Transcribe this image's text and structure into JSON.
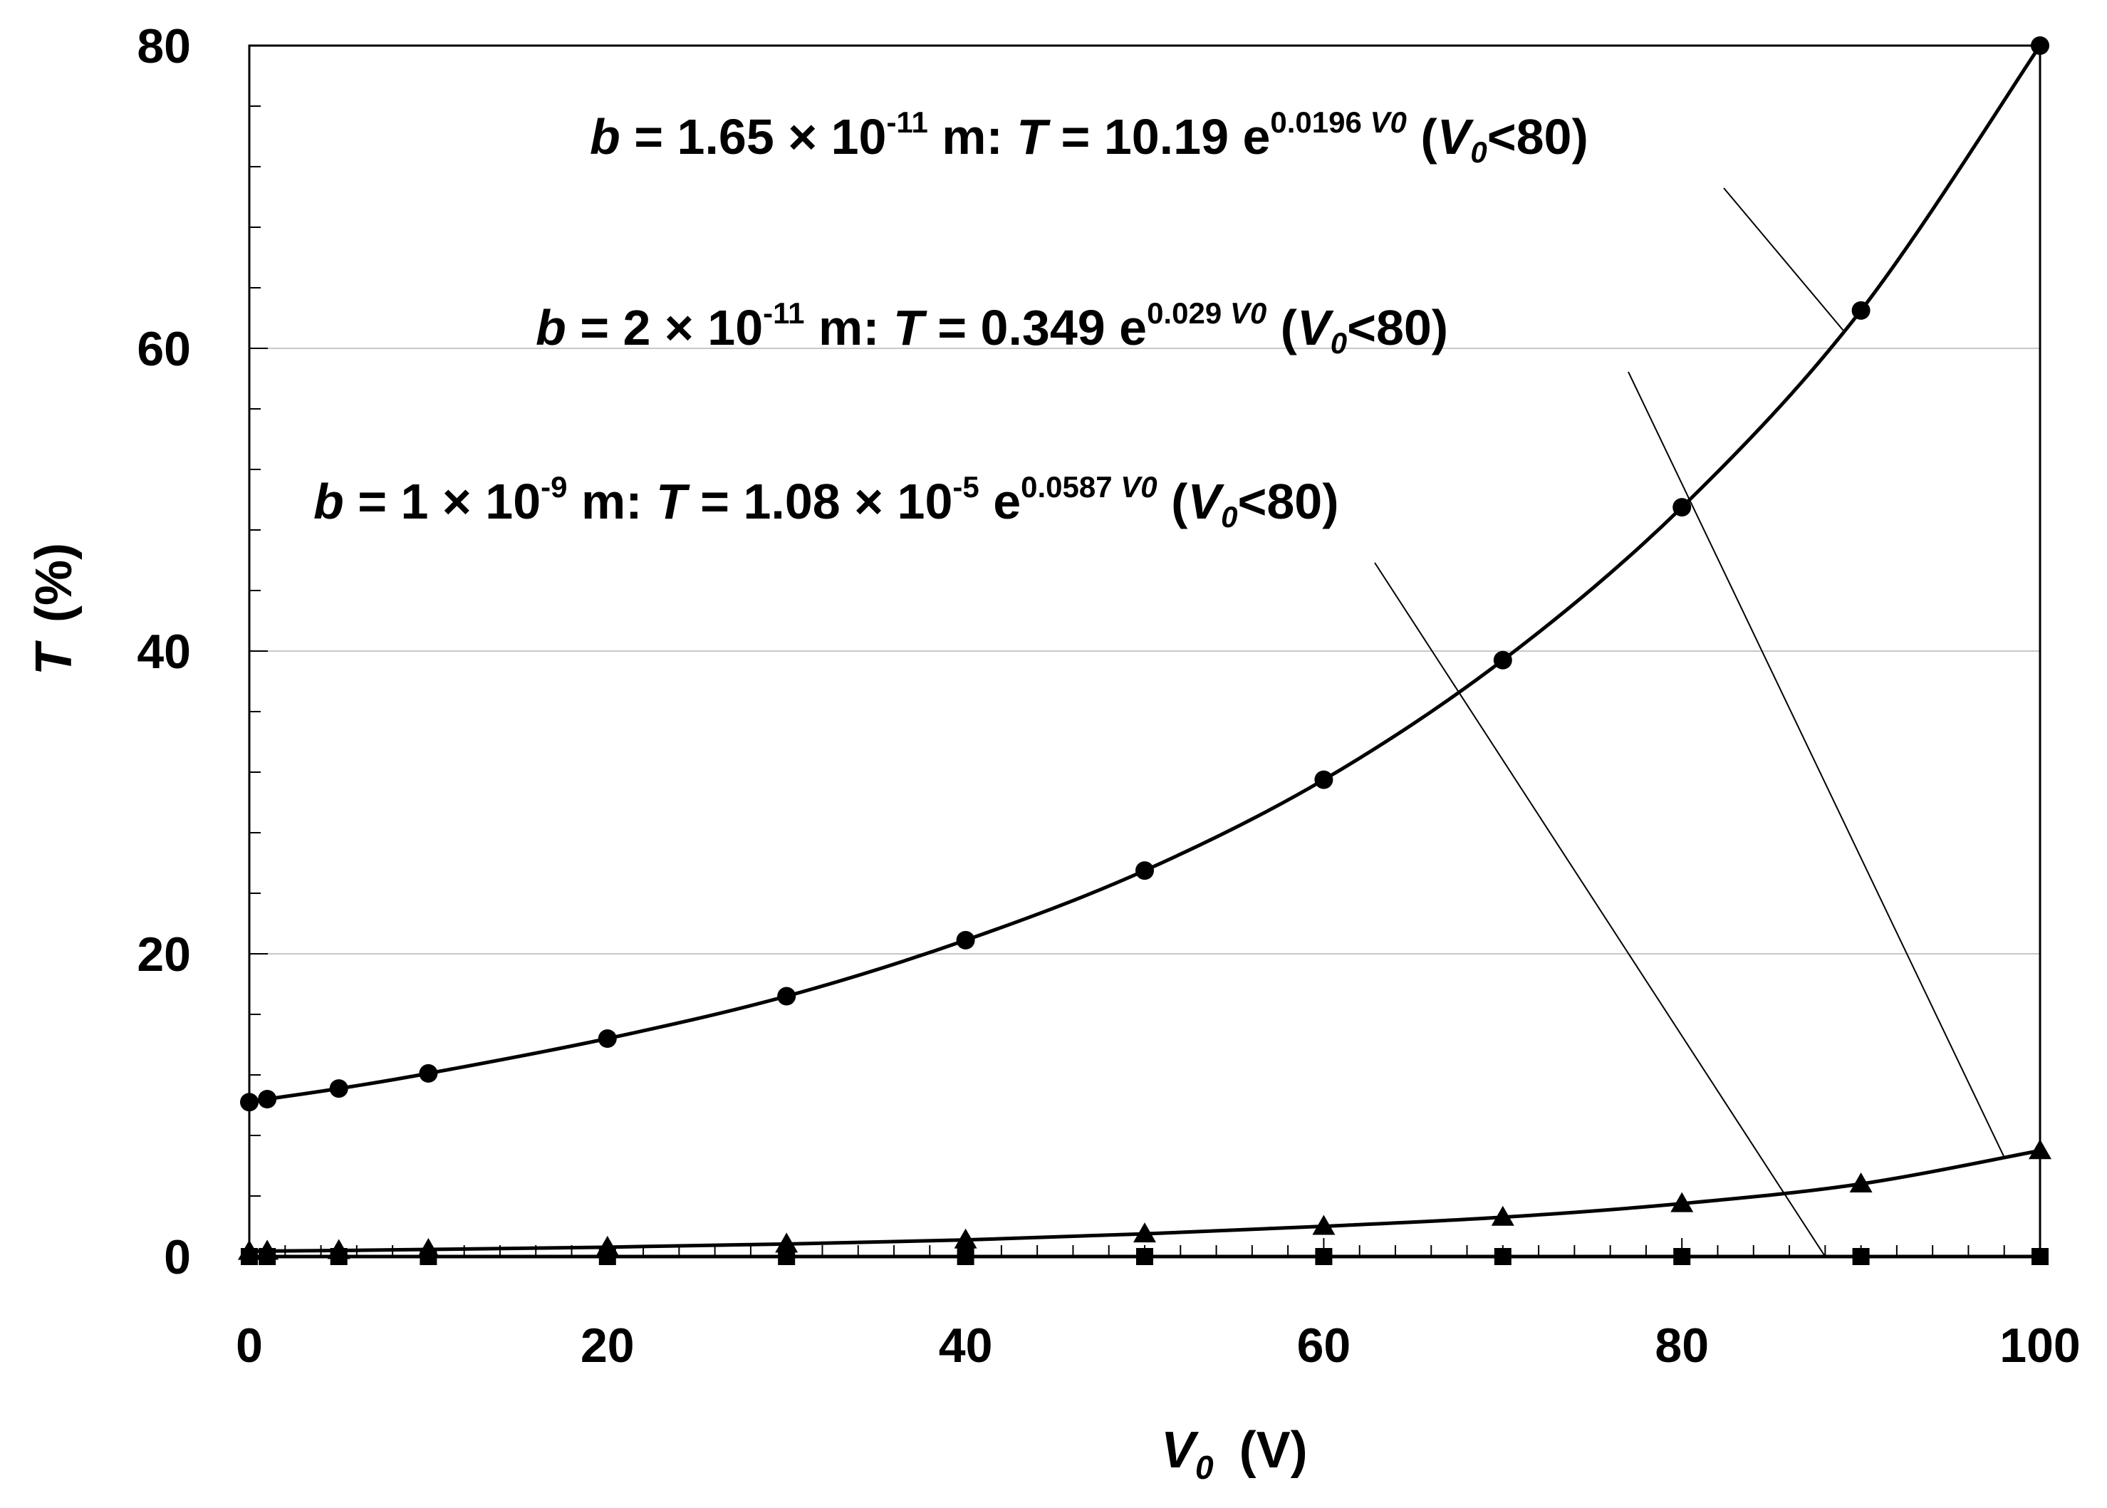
{
  "chart_data": {
    "type": "line",
    "title": "",
    "xlabel": "V",
    "xlabel_sub": "0",
    "xlabel_unit": "(V)",
    "ylabel": "T",
    "ylabel_unit": "(%)",
    "xlim": [
      0,
      100
    ],
    "ylim": [
      0,
      80
    ],
    "x_ticks": [
      "0",
      "20",
      "40",
      "60",
      "80",
      "100"
    ],
    "y_ticks": [
      "0",
      "20",
      "40",
      "60",
      "80"
    ],
    "grid": "horizontal",
    "series": [
      {
        "name": "b = 1.65 × 10^-11 m",
        "marker": "circle",
        "x": [
          0,
          1,
          5,
          10,
          20,
          30,
          40,
          50,
          60,
          70,
          80,
          90,
          100
        ],
        "y": [
          10.2,
          10.4,
          11.1,
          12.1,
          14.4,
          17.2,
          20.9,
          25.5,
          31.5,
          39.4,
          49.5,
          62.5,
          80.0
        ]
      },
      {
        "name": "b = 2 × 10^-11 m",
        "marker": "triangle",
        "x": [
          0,
          1,
          5,
          10,
          20,
          30,
          40,
          50,
          60,
          70,
          80,
          90,
          100
        ],
        "y": [
          0.35,
          0.36,
          0.4,
          0.47,
          0.62,
          0.83,
          1.1,
          1.5,
          2.0,
          2.6,
          3.5,
          4.8,
          7.0
        ]
      },
      {
        "name": "b = 1 × 10^-9 m",
        "marker": "square",
        "x": [
          0,
          1,
          5,
          10,
          20,
          30,
          40,
          50,
          60,
          70,
          80,
          90,
          100
        ],
        "y": [
          0.0,
          0.0,
          0.0,
          0.0,
          0.0,
          0.0,
          0.0,
          0.0,
          0.0,
          0.0,
          0.0,
          0.0,
          0.0
        ]
      }
    ],
    "annotations": [
      {
        "b_label": "b",
        "b_value": " = 1.65",
        "times": " × ",
        "ten": "10",
        "b_exp": "-11",
        "unit": " m: ",
        "t_label": "T",
        "eq": " = 10.19 e",
        "exp_coef": "0.0196 ",
        "exp_var": "V",
        "exp_var_sub": "0",
        "cond_open": " (",
        "cond_var": "V",
        "cond_sub": "0",
        "cond_rest": "<80)",
        "points_to_series": 0
      },
      {
        "b_label": "b",
        "b_value": " = 2",
        "times": " × ",
        "ten": "10",
        "b_exp": "-11",
        "unit": " m: ",
        "t_label": "T",
        "eq": " = 0.349 e",
        "exp_coef": "0.029 ",
        "exp_var": "V",
        "exp_var_sub": "0",
        "cond_open": " (",
        "cond_var": "V",
        "cond_sub": "0",
        "cond_rest": "<80)",
        "points_to_series": 1
      },
      {
        "b_label": "b",
        "b_value": " = 1",
        "times": " × ",
        "ten": "10",
        "b_exp": "-9",
        "unit": " m: ",
        "t_label": "T",
        "eq_pre": " = 1.08",
        "eq_times": " × ",
        "eq_ten": "10",
        "eq_exp": "-5",
        "eq": " e",
        "exp_coef": "0.0587 ",
        "exp_var": "V",
        "exp_var_sub": "0",
        "cond_open": " (",
        "cond_var": "V",
        "cond_sub": "0",
        "cond_rest": "<80)",
        "points_to_series": 2
      }
    ],
    "colors": {
      "line": "#000000",
      "grid": "#c8c8c8",
      "background": "#ffffff"
    }
  }
}
